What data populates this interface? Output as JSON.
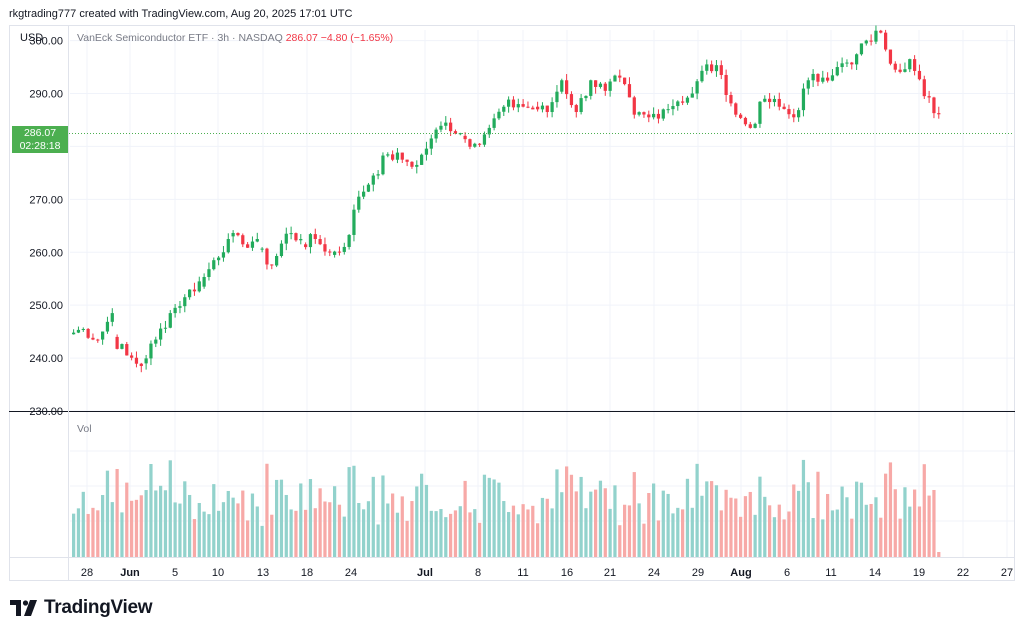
{
  "header": {
    "attribution": "rkgtrading777 created with TradingView.com, Aug 20, 2025 17:01 UTC"
  },
  "legend": {
    "currency": "USD",
    "symbol": "VanEck Semiconductor ETF · 3h · NASDAQ",
    "price": "286.07",
    "change": "−4.80 (−1.65%)"
  },
  "last_price_badge": {
    "price": "286.07",
    "countdown": "02:28:18"
  },
  "volume_pane": {
    "label": "Vol"
  },
  "logo": {
    "text": "TradingView"
  },
  "colors": {
    "up": "#26a69a",
    "up_candle": "#22ab5c",
    "down": "#f23645",
    "vol_up": "#92d2cc",
    "vol_down": "#f7a9a7",
    "grid": "#f0f3fa",
    "axis_text": "#131722"
  },
  "chart_data": {
    "type": "candlestick",
    "interval": "3h",
    "y_axis": {
      "ticks": [
        "300.00",
        "290.00",
        "280.00",
        "270.00",
        "260.00",
        "250.00",
        "240.00",
        "230.00"
      ],
      "range": [
        230,
        302
      ]
    },
    "x_axis": {
      "ticks": [
        "28",
        "Jun",
        "5",
        "10",
        "13",
        "18",
        "24",
        "Jul",
        "8",
        "11",
        "16",
        "21",
        "24",
        "29",
        "Aug",
        "6",
        "11",
        "14",
        "19",
        "22",
        "27"
      ]
    },
    "last_price": 286.07,
    "daily_path": [
      [
        "May 27",
        244.5,
        245.5
      ],
      [
        "May 28",
        245.5,
        243.5
      ],
      [
        "May 29",
        243.5,
        248.5
      ],
      [
        "May 30",
        244,
        240.5
      ],
      [
        "Jun 2",
        240.5,
        238.5
      ],
      [
        "Jun 3",
        239,
        243.5
      ],
      [
        "Jun 4",
        243.5,
        248.5
      ],
      [
        "Jun 5",
        248.5,
        251.5
      ],
      [
        "Jun 6",
        251.5,
        254.5
      ],
      [
        "Jun 9",
        253.5,
        258.5
      ],
      [
        "Jun 10",
        258.5,
        262.5
      ],
      [
        "Jun 11",
        263,
        261.5
      ],
      [
        "Jun 12",
        261.5,
        262.5
      ],
      [
        "Jun 13",
        260.5,
        257.5
      ],
      [
        "Jun 16",
        257.5,
        263.5
      ],
      [
        "Jun 17",
        263.5,
        262.5
      ],
      [
        "Jun 18",
        261.5,
        262.5
      ],
      [
        "Jun 20",
        262.5,
        260
      ],
      [
        "Jun 23",
        259.5,
        261
      ],
      [
        "Jun 24",
        261,
        270.5
      ],
      [
        "Jun 25",
        270.5,
        274.5
      ],
      [
        "Jun 26",
        274.5,
        278.5
      ],
      [
        "Jun 27",
        278.5,
        277.5
      ],
      [
        "Jun 30",
        277.5,
        276.5
      ],
      [
        "Jul 1",
        276.5,
        281.5
      ],
      [
        "Jul 2",
        281.5,
        284.5
      ],
      [
        "Jul 3",
        284.5,
        282.5
      ],
      [
        "Jul 7",
        282,
        280.5
      ],
      [
        "Jul 8",
        280.5,
        283.5
      ],
      [
        "Jul 9",
        283.5,
        287.5
      ],
      [
        "Jul 10",
        287.5,
        288
      ],
      [
        "Jul 11",
        288,
        287
      ],
      [
        "Jul 14",
        287.5,
        286.5
      ],
      [
        "Jul 15",
        286.5,
        292.5
      ],
      [
        "Jul 16",
        292.5,
        286.5
      ],
      [
        "Jul 17",
        286.5,
        292.5
      ],
      [
        "Jul 18",
        292.5,
        290.5
      ],
      [
        "Jul 21",
        290.5,
        293
      ],
      [
        "Jul 22",
        293,
        286
      ],
      [
        "Jul 23",
        286,
        285.5
      ],
      [
        "Jul 24",
        285.5,
        287
      ],
      [
        "Jul 25",
        287,
        288.5
      ],
      [
        "Jul 28",
        288.5,
        290
      ],
      [
        "Jul 29",
        290,
        295.5
      ],
      [
        "Jul 30",
        295.5,
        293.5
      ],
      [
        "Jul 31",
        293.5,
        286
      ],
      [
        "Aug 1",
        286,
        283.5
      ],
      [
        "Aug 4",
        283.5,
        289
      ],
      [
        "Aug 5",
        289,
        287.5
      ],
      [
        "Aug 6",
        287.5,
        285.5
      ],
      [
        "Aug 7",
        285.5,
        292.5
      ],
      [
        "Aug 8",
        292.5,
        293
      ],
      [
        "Aug 11",
        293,
        295
      ],
      [
        "Aug 12",
        295,
        295.5
      ],
      [
        "Aug 13",
        295.5,
        300
      ],
      [
        "Aug 14",
        300,
        301.5
      ],
      [
        "Aug 15",
        301.5,
        294.5
      ],
      [
        "Aug 18",
        294.5,
        296.5
      ],
      [
        "Aug 19",
        296.5,
        289.5
      ],
      [
        "Aug 20",
        289.5,
        286.07
      ]
    ]
  }
}
